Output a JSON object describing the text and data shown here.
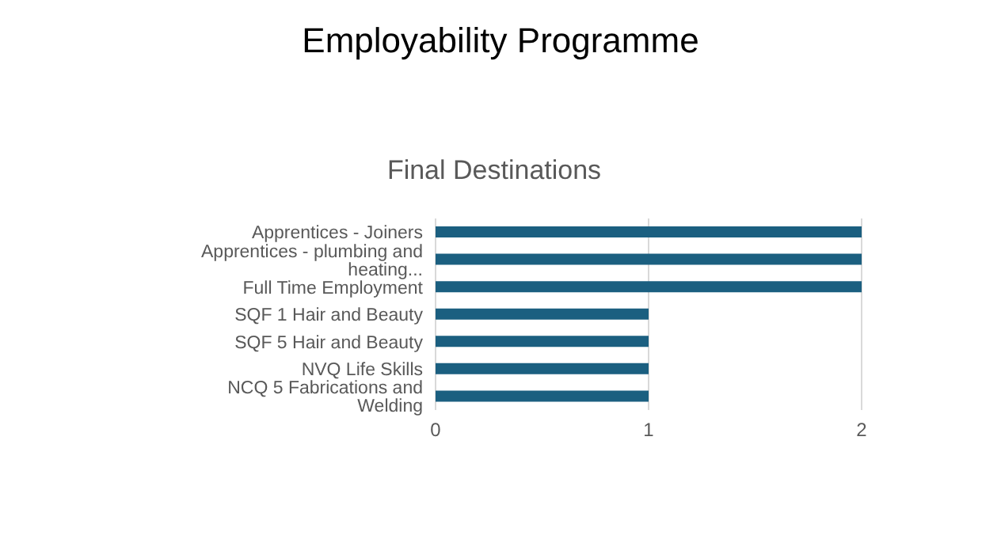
{
  "chart_data": {
    "type": "bar",
    "orientation": "horizontal",
    "title": "Employability Programme",
    "subtitle": "Final Destinations",
    "categories": [
      "Apprentices - Joiners",
      "Apprentices - plumbing and heating...",
      "Full Time Employment",
      "SQF 1 Hair and Beauty",
      "SQF 5 Hair and Beauty",
      "NVQ Life Skills",
      "NCQ 5 Fabrications and Welding"
    ],
    "values": [
      2,
      2,
      2,
      1,
      1,
      1,
      1
    ],
    "color": "#1b5f80",
    "xlim": [
      0,
      2
    ],
    "xticks": [
      0,
      1,
      2
    ],
    "grid": "x",
    "legend": false
  }
}
